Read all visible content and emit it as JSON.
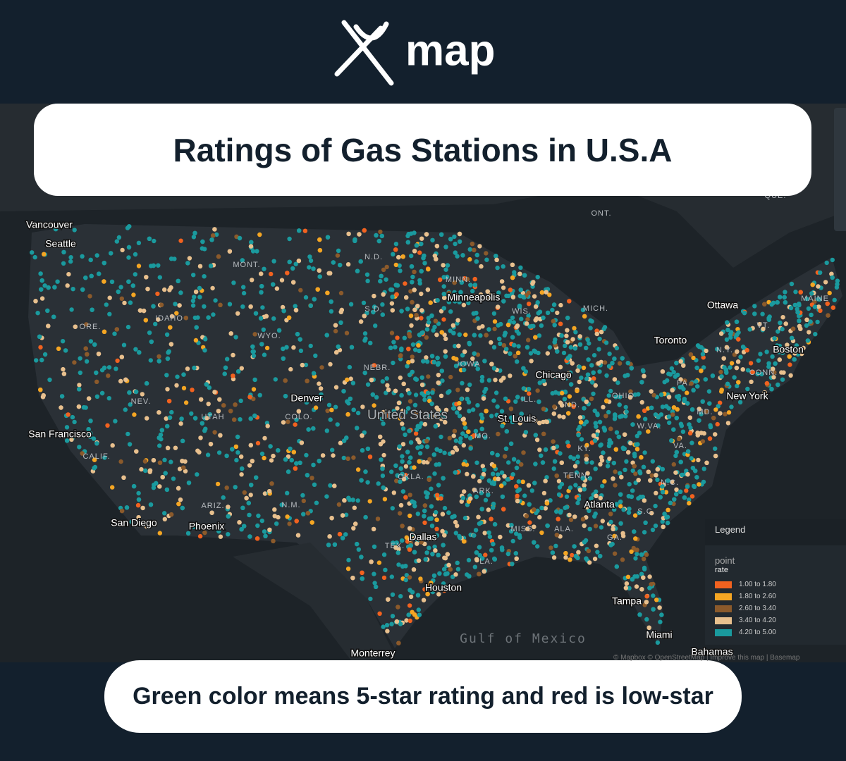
{
  "header": {
    "logo_text": "map"
  },
  "title": "Ratings of Gas Stations in U.S.A",
  "caption": "Green color means 5-star rating and red is low-star",
  "map": {
    "country_label": "United States",
    "water_label": "Gulf of Mexico",
    "cities": [
      "Vancouver",
      "Seattle",
      "San Francisco",
      "San Diego",
      "Phoenix",
      "Denver",
      "Minneapolis",
      "Chicago",
      "St. Louis",
      "Dallas",
      "Houston",
      "Atlanta",
      "Tampa",
      "Miami",
      "New York",
      "Boston",
      "Toronto",
      "Ottawa",
      "Monterrey",
      "Bahamas"
    ],
    "regions": [
      "MONT.",
      "N.D.",
      "MINN.",
      "WIS.",
      "MICH.",
      "IDAHO",
      "ORE.",
      "WYO.",
      "S.D.",
      "NEBR.",
      "IOWA",
      "NEV.",
      "UTAH",
      "COLO.",
      "ILL.",
      "IND.",
      "OHIO",
      "PA.",
      "N.Y.",
      "VT.",
      "MAINE",
      "CONN.",
      "MD.",
      "W.VA.",
      "VA.",
      "KY.",
      "MO.",
      "CALIF.",
      "ARIZ.",
      "N.M.",
      "OKLA.",
      "ARK.",
      "TENN.",
      "N.C.",
      "S.C.",
      "MISS.",
      "ALA.",
      "GA.",
      "LA.",
      "TEX.",
      "ONT.",
      "QUE."
    ],
    "attribution": "© Mapbox © OpenStreetMap | Improve this map | Basemap"
  },
  "legend": {
    "title": "Legend",
    "layer": "point",
    "field": "rate",
    "items": [
      {
        "label": "1.00 to 1.80",
        "color": "#f2621f"
      },
      {
        "label": "1.80 to 2.60",
        "color": "#f5a623"
      },
      {
        "label": "2.60 to 3.40",
        "color": "#8b5a2b"
      },
      {
        "label": "3.40 to 4.20",
        "color": "#e8c08e"
      },
      {
        "label": "4.20 to 5.00",
        "color": "#1a9a9e"
      }
    ]
  }
}
